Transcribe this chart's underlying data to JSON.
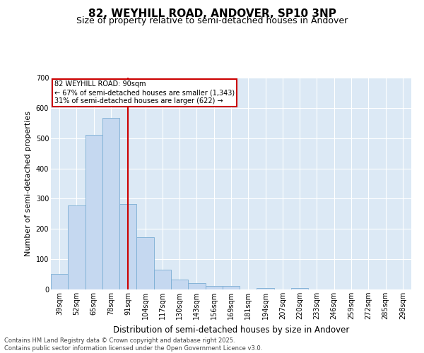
{
  "title": "82, WEYHILL ROAD, ANDOVER, SP10 3NP",
  "subtitle": "Size of property relative to semi-detached houses in Andover",
  "xlabel": "Distribution of semi-detached houses by size in Andover",
  "ylabel": "Number of semi-detached properties",
  "categories": [
    "39sqm",
    "52sqm",
    "65sqm",
    "78sqm",
    "91sqm",
    "104sqm",
    "117sqm",
    "130sqm",
    "143sqm",
    "156sqm",
    "169sqm",
    "181sqm",
    "194sqm",
    "207sqm",
    "220sqm",
    "233sqm",
    "246sqm",
    "259sqm",
    "272sqm",
    "285sqm",
    "298sqm"
  ],
  "values": [
    52,
    278,
    510,
    568,
    282,
    172,
    65,
    33,
    22,
    11,
    11,
    0,
    5,
    0,
    5,
    0,
    0,
    0,
    0,
    0,
    0
  ],
  "bar_color": "#c5d8f0",
  "bar_edge_color": "#7aadd4",
  "vline_x": 4,
  "vline_color": "#cc0000",
  "ylim": [
    0,
    700
  ],
  "yticks": [
    0,
    100,
    200,
    300,
    400,
    500,
    600,
    700
  ],
  "annotation_title": "82 WEYHILL ROAD: 90sqm",
  "annotation_line1": "← 67% of semi-detached houses are smaller (1,343)",
  "annotation_line2": "31% of semi-detached houses are larger (622) →",
  "annotation_box_edge_color": "#cc0000",
  "bg_color": "#ffffff",
  "plot_bg_color": "#dce9f5",
  "footer_line1": "Contains HM Land Registry data © Crown copyright and database right 2025.",
  "footer_line2": "Contains public sector information licensed under the Open Government Licence v3.0.",
  "title_fontsize": 11,
  "subtitle_fontsize": 9,
  "tick_fontsize": 7,
  "ylabel_fontsize": 8,
  "xlabel_fontsize": 8.5,
  "annotation_fontsize": 7,
  "footer_fontsize": 6
}
